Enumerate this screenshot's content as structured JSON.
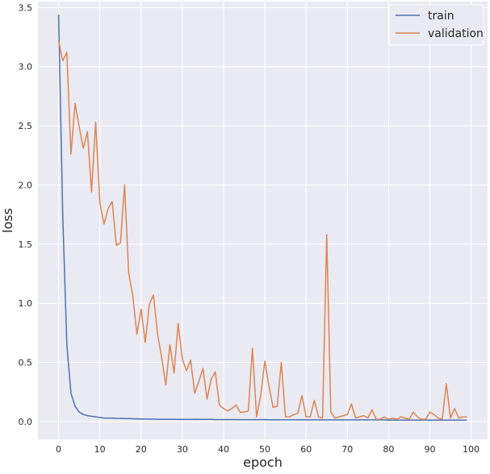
{
  "chart_data": {
    "type": "line",
    "xlabel": "epoch",
    "ylabel": "loss",
    "xlim": [
      -5,
      104
    ],
    "ylim": [
      -0.15,
      3.55
    ],
    "xticks": [
      0,
      10,
      20,
      30,
      40,
      50,
      60,
      70,
      80,
      90,
      100
    ],
    "yticks": [
      0.0,
      0.5,
      1.0,
      1.5,
      2.0,
      2.5,
      3.0,
      3.5
    ],
    "xtick_labels": [
      "0",
      "10",
      "20",
      "30",
      "40",
      "50",
      "60",
      "70",
      "80",
      "90",
      "100"
    ],
    "ytick_labels": [
      "0.0",
      "0.5",
      "1.0",
      "1.5",
      "2.0",
      "2.5",
      "3.0",
      "3.5"
    ],
    "grid": true,
    "legend_position": "top-right",
    "x": [
      0,
      1,
      2,
      3,
      4,
      5,
      6,
      7,
      8,
      9,
      10,
      11,
      12,
      13,
      14,
      15,
      16,
      17,
      18,
      19,
      20,
      21,
      22,
      23,
      24,
      25,
      26,
      27,
      28,
      29,
      30,
      31,
      32,
      33,
      34,
      35,
      36,
      37,
      38,
      39,
      40,
      41,
      42,
      43,
      44,
      45,
      46,
      47,
      48,
      49,
      50,
      51,
      52,
      53,
      54,
      55,
      56,
      57,
      58,
      59,
      60,
      61,
      62,
      63,
      64,
      65,
      66,
      67,
      68,
      69,
      70,
      71,
      72,
      73,
      74,
      75,
      76,
      77,
      78,
      79,
      80,
      81,
      82,
      83,
      84,
      85,
      86,
      87,
      88,
      89,
      90,
      91,
      92,
      93,
      94,
      95,
      96,
      97,
      98,
      99
    ],
    "series": [
      {
        "name": "train",
        "color": "#4c72b0",
        "values": [
          3.44,
          1.75,
          0.65,
          0.24,
          0.13,
          0.08,
          0.06,
          0.05,
          0.045,
          0.04,
          0.035,
          0.03,
          0.03,
          0.03,
          0.028,
          0.027,
          0.025,
          0.025,
          0.024,
          0.023,
          0.022,
          0.022,
          0.021,
          0.021,
          0.02,
          0.02,
          0.02,
          0.02,
          0.02,
          0.019,
          0.019,
          0.019,
          0.018,
          0.02,
          0.018,
          0.018,
          0.018,
          0.018,
          0.017,
          0.017,
          0.017,
          0.017,
          0.017,
          0.017,
          0.016,
          0.016,
          0.016,
          0.016,
          0.016,
          0.016,
          0.016,
          0.015,
          0.015,
          0.015,
          0.015,
          0.015,
          0.015,
          0.015,
          0.015,
          0.015,
          0.015,
          0.014,
          0.014,
          0.014,
          0.014,
          0.014,
          0.014,
          0.014,
          0.014,
          0.014,
          0.014,
          0.014,
          0.014,
          0.014,
          0.014,
          0.014,
          0.014,
          0.014,
          0.014,
          0.014,
          0.013,
          0.013,
          0.013,
          0.013,
          0.013,
          0.013,
          0.013,
          0.013,
          0.013,
          0.013,
          0.013,
          0.013,
          0.013,
          0.013,
          0.013,
          0.013,
          0.013,
          0.013,
          0.013,
          0.013
        ]
      },
      {
        "name": "validation",
        "color": "#dd8452",
        "values": [
          3.22,
          3.05,
          3.12,
          2.26,
          2.69,
          2.49,
          2.31,
          2.45,
          1.94,
          2.53,
          1.85,
          1.67,
          1.8,
          1.86,
          1.49,
          1.51,
          2.0,
          1.26,
          1.06,
          0.74,
          0.95,
          0.67,
          0.99,
          1.07,
          0.74,
          0.54,
          0.31,
          0.65,
          0.41,
          0.83,
          0.53,
          0.43,
          0.52,
          0.24,
          0.34,
          0.45,
          0.19,
          0.36,
          0.42,
          0.14,
          0.11,
          0.09,
          0.11,
          0.14,
          0.08,
          0.08,
          0.09,
          0.62,
          0.04,
          0.22,
          0.51,
          0.3,
          0.12,
          0.13,
          0.5,
          0.04,
          0.04,
          0.06,
          0.07,
          0.22,
          0.04,
          0.04,
          0.18,
          0.04,
          0.03,
          1.58,
          0.08,
          0.03,
          0.04,
          0.05,
          0.06,
          0.15,
          0.03,
          0.04,
          0.05,
          0.03,
          0.1,
          0.02,
          0.02,
          0.04,
          0.02,
          0.03,
          0.02,
          0.04,
          0.03,
          0.02,
          0.08,
          0.04,
          0.02,
          0.02,
          0.08,
          0.06,
          0.03,
          0.02,
          0.32,
          0.03,
          0.11,
          0.03,
          0.04,
          0.04
        ]
      }
    ]
  }
}
